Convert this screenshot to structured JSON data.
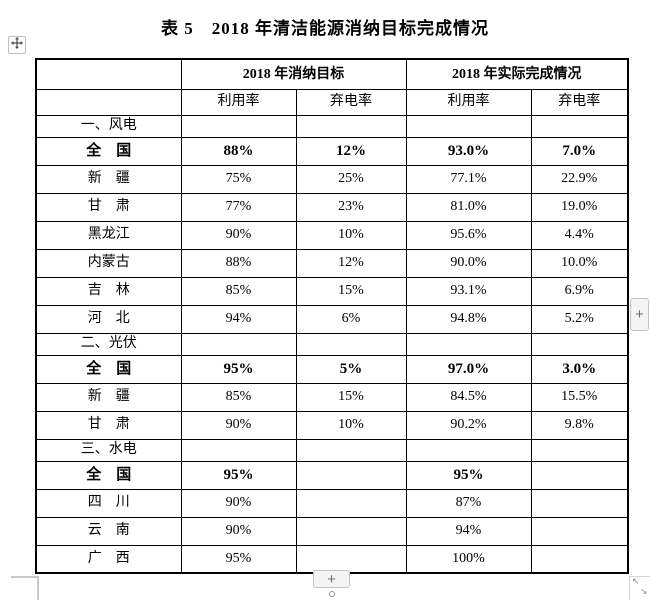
{
  "title": "表 5　2018 年清洁能源消纳目标完成情况",
  "table": {
    "group_headers": [
      "2018 年消纳目标",
      "2018 年实际完成情况"
    ],
    "sub_headers": [
      "利用率",
      "弃电率",
      "利用率",
      "弃电率"
    ],
    "sections": [
      {
        "label": "一、风电",
        "rows": [
          {
            "name": "全　国",
            "bold": true,
            "values": [
              "88%",
              "12%",
              "93.0%",
              "7.0%"
            ]
          },
          {
            "name": "新　疆",
            "bold": false,
            "values": [
              "75%",
              "25%",
              "77.1%",
              "22.9%"
            ]
          },
          {
            "name": "甘　肃",
            "bold": false,
            "values": [
              "77%",
              "23%",
              "81.0%",
              "19.0%"
            ]
          },
          {
            "name": "黑龙江",
            "bold": false,
            "values": [
              "90%",
              "10%",
              "95.6%",
              "4.4%"
            ]
          },
          {
            "name": "内蒙古",
            "bold": false,
            "values": [
              "88%",
              "12%",
              "90.0%",
              "10.0%"
            ]
          },
          {
            "name": "吉　林",
            "bold": false,
            "values": [
              "85%",
              "15%",
              "93.1%",
              "6.9%"
            ]
          },
          {
            "name": "河　北",
            "bold": false,
            "values": [
              "94%",
              "6%",
              "94.8%",
              "5.2%"
            ]
          }
        ]
      },
      {
        "label": "二、光伏",
        "rows": [
          {
            "name": "全　国",
            "bold": true,
            "values": [
              "95%",
              "5%",
              "97.0%",
              "3.0%"
            ]
          },
          {
            "name": "新　疆",
            "bold": false,
            "values": [
              "85%",
              "15%",
              "84.5%",
              "15.5%"
            ]
          },
          {
            "name": "甘　肃",
            "bold": false,
            "values": [
              "90%",
              "10%",
              "90.2%",
              "9.8%"
            ]
          }
        ]
      },
      {
        "label": "三、水电",
        "rows": [
          {
            "name": "全　国",
            "bold": true,
            "values": [
              "95%",
              "",
              "95%",
              ""
            ]
          },
          {
            "name": "四　川",
            "bold": false,
            "values": [
              "90%",
              "",
              "87%",
              ""
            ]
          },
          {
            "name": "云　南",
            "bold": false,
            "values": [
              "90%",
              "",
              "94%",
              ""
            ]
          },
          {
            "name": "广　西",
            "bold": false,
            "values": [
              "95%",
              "",
              "100%",
              ""
            ]
          }
        ]
      }
    ]
  },
  "controls": {
    "add_row_label": "+",
    "add_column_label": "+",
    "resize_arrow_nw": "↖",
    "resize_arrow_se": "↘"
  },
  "colors": {
    "border": "#000000",
    "control_border": "#c3c3c3",
    "control_bg": "#f4f4f4"
  }
}
